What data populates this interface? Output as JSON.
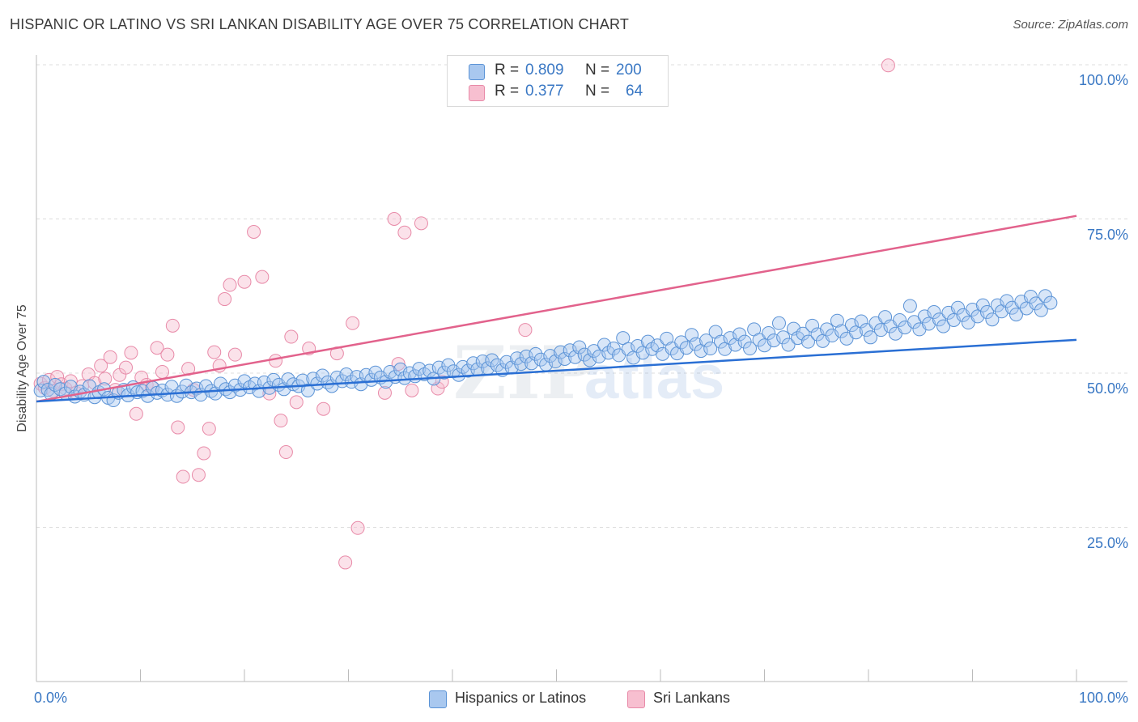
{
  "title": "HISPANIC OR LATINO VS SRI LANKAN DISABILITY AGE OVER 75 CORRELATION CHART",
  "source": "Source: ZipAtlas.com",
  "watermark": "ZIPatlas",
  "stats": {
    "row1": {
      "r_label": "R =",
      "r_value": "0.809",
      "n_label": "N =",
      "n_value": "200"
    },
    "row2": {
      "r_label": "R =",
      "r_value": "0.377",
      "n_label": "N =",
      "n_value": "64"
    }
  },
  "legend": {
    "hispanic": "Hispanics or Latinos",
    "srilankan": "Sri Lankans"
  },
  "colors": {
    "blue_fill": "#a9c8ef",
    "blue_edge": "#5b93d6",
    "blue_line": "#2a6fd4",
    "pink_fill": "#f7bfd0",
    "pink_edge": "#e88aa8",
    "pink_line": "#e2628c",
    "axis_text": "#3a78c4",
    "grid": "#dddddd"
  },
  "chart_data": {
    "type": "scatter",
    "title": "HISPANIC OR LATINO VS SRI LANKAN DISABILITY AGE OVER 75 CORRELATION CHART",
    "xlabel": "",
    "ylabel": "Disability Age Over 75",
    "xlim": [
      0,
      100
    ],
    "ylim": [
      0,
      100
    ],
    "x_tick_labels": [
      "0.0%",
      "100.0%"
    ],
    "y_tick_labels": [
      "25.0%",
      "50.0%",
      "75.0%",
      "100.0%"
    ],
    "y_ticks": [
      25,
      50,
      75,
      100
    ],
    "grid": true,
    "legend_position": "bottom",
    "series": [
      {
        "name": "Hispanics or Latinos",
        "r": 0.809,
        "n": 200,
        "trend": {
          "x": [
            0,
            100
          ],
          "y": [
            45.4,
            55.4
          ]
        },
        "points": [
          [
            0.4,
            47.2
          ],
          [
            0.7,
            48.6
          ],
          [
            1.1,
            47.3
          ],
          [
            1.4,
            46.6
          ],
          [
            1.8,
            48.1
          ],
          [
            2.3,
            47.4
          ],
          [
            2.8,
            46.7
          ],
          [
            3.3,
            47.8
          ],
          [
            3.7,
            46.2
          ],
          [
            4.2,
            47.0
          ],
          [
            4.6,
            46.5
          ],
          [
            5.1,
            47.9
          ],
          [
            5.6,
            46.1
          ],
          [
            6.0,
            46.9
          ],
          [
            6.5,
            47.4
          ],
          [
            6.9,
            46.0
          ],
          [
            7.4,
            45.6
          ],
          [
            7.9,
            46.8
          ],
          [
            8.4,
            47.3
          ],
          [
            8.8,
            46.4
          ],
          [
            9.3,
            47.7
          ],
          [
            9.7,
            46.9
          ],
          [
            10.2,
            47.1
          ],
          [
            10.7,
            46.3
          ],
          [
            11.2,
            47.6
          ],
          [
            11.6,
            46.8
          ],
          [
            12.1,
            47.2
          ],
          [
            12.6,
            46.5
          ],
          [
            13.0,
            47.8
          ],
          [
            13.5,
            46.3
          ],
          [
            14.0,
            47.0
          ],
          [
            14.4,
            48.0
          ],
          [
            14.9,
            46.9
          ],
          [
            15.4,
            47.5
          ],
          [
            15.8,
            46.5
          ],
          [
            16.3,
            47.9
          ],
          [
            16.8,
            47.1
          ],
          [
            17.2,
            46.7
          ],
          [
            17.7,
            48.3
          ],
          [
            18.2,
            47.4
          ],
          [
            18.6,
            46.9
          ],
          [
            19.1,
            48.0
          ],
          [
            19.6,
            47.3
          ],
          [
            20.0,
            48.7
          ],
          [
            20.5,
            47.7
          ],
          [
            21.0,
            48.3
          ],
          [
            21.4,
            47.1
          ],
          [
            21.9,
            48.5
          ],
          [
            22.4,
            47.6
          ],
          [
            22.8,
            48.9
          ],
          [
            23.3,
            48.1
          ],
          [
            23.8,
            47.4
          ],
          [
            24.2,
            49.0
          ],
          [
            24.7,
            48.2
          ],
          [
            25.2,
            47.9
          ],
          [
            25.6,
            48.8
          ],
          [
            26.1,
            47.2
          ],
          [
            26.6,
            49.1
          ],
          [
            27.0,
            48.3
          ],
          [
            27.5,
            49.6
          ],
          [
            28.0,
            48.5
          ],
          [
            28.4,
            47.9
          ],
          [
            28.9,
            49.3
          ],
          [
            29.4,
            48.7
          ],
          [
            29.8,
            49.8
          ],
          [
            30.3,
            48.6
          ],
          [
            30.8,
            49.4
          ],
          [
            31.2,
            48.2
          ],
          [
            31.7,
            49.7
          ],
          [
            32.2,
            48.9
          ],
          [
            32.6,
            50.1
          ],
          [
            33.1,
            49.3
          ],
          [
            33.6,
            48.6
          ],
          [
            34.0,
            50.2
          ],
          [
            34.5,
            49.4
          ],
          [
            35.0,
            50.6
          ],
          [
            35.4,
            49.2
          ],
          [
            35.9,
            50.0
          ],
          [
            36.4,
            49.5
          ],
          [
            36.8,
            50.7
          ],
          [
            37.3,
            49.8
          ],
          [
            37.8,
            50.4
          ],
          [
            38.2,
            49.1
          ],
          [
            38.7,
            50.9
          ],
          [
            39.2,
            50.1
          ],
          [
            39.6,
            51.3
          ],
          [
            40.1,
            50.3
          ],
          [
            40.6,
            49.7
          ],
          [
            41.0,
            51.0
          ],
          [
            41.5,
            50.4
          ],
          [
            42.0,
            51.6
          ],
          [
            42.4,
            50.6
          ],
          [
            42.9,
            51.9
          ],
          [
            43.4,
            50.8
          ],
          [
            43.8,
            52.1
          ],
          [
            44.3,
            51.3
          ],
          [
            44.8,
            50.5
          ],
          [
            45.2,
            51.8
          ],
          [
            45.7,
            50.9
          ],
          [
            46.2,
            52.4
          ],
          [
            46.6,
            51.5
          ],
          [
            47.1,
            52.7
          ],
          [
            47.6,
            51.6
          ],
          [
            48.0,
            53.1
          ],
          [
            48.5,
            52.2
          ],
          [
            49.0,
            51.4
          ],
          [
            49.4,
            52.8
          ],
          [
            49.9,
            51.9
          ],
          [
            50.4,
            53.4
          ],
          [
            50.8,
            52.3
          ],
          [
            51.3,
            53.7
          ],
          [
            51.8,
            52.6
          ],
          [
            52.2,
            54.2
          ],
          [
            52.7,
            53.0
          ],
          [
            53.2,
            52.1
          ],
          [
            53.6,
            53.6
          ],
          [
            54.1,
            52.7
          ],
          [
            54.6,
            54.6
          ],
          [
            55.0,
            53.3
          ],
          [
            55.5,
            54.0
          ],
          [
            56.0,
            52.9
          ],
          [
            56.4,
            55.7
          ],
          [
            56.9,
            53.9
          ],
          [
            57.4,
            52.5
          ],
          [
            57.8,
            54.4
          ],
          [
            58.3,
            53.3
          ],
          [
            58.8,
            55.1
          ],
          [
            59.2,
            53.9
          ],
          [
            59.7,
            54.5
          ],
          [
            60.2,
            53.1
          ],
          [
            60.6,
            55.6
          ],
          [
            61.1,
            54.0
          ],
          [
            61.6,
            53.2
          ],
          [
            62.0,
            55.0
          ],
          [
            62.5,
            54.1
          ],
          [
            63.0,
            56.2
          ],
          [
            63.4,
            54.7
          ],
          [
            63.9,
            53.6
          ],
          [
            64.4,
            55.3
          ],
          [
            64.8,
            54.0
          ],
          [
            65.3,
            56.7
          ],
          [
            65.8,
            55.1
          ],
          [
            66.2,
            53.9
          ],
          [
            66.7,
            55.7
          ],
          [
            67.2,
            54.6
          ],
          [
            67.6,
            56.3
          ],
          [
            68.1,
            55.1
          ],
          [
            68.6,
            54.0
          ],
          [
            69.0,
            57.1
          ],
          [
            69.5,
            55.4
          ],
          [
            70.0,
            54.5
          ],
          [
            70.4,
            56.5
          ],
          [
            70.9,
            55.3
          ],
          [
            71.4,
            58.1
          ],
          [
            71.8,
            55.8
          ],
          [
            72.3,
            54.6
          ],
          [
            72.8,
            57.2
          ],
          [
            73.2,
            55.7
          ],
          [
            73.7,
            56.4
          ],
          [
            74.2,
            55.1
          ],
          [
            74.6,
            57.7
          ],
          [
            75.1,
            56.3
          ],
          [
            75.6,
            55.2
          ],
          [
            76.0,
            57.1
          ],
          [
            76.5,
            56.1
          ],
          [
            77.0,
            58.5
          ],
          [
            77.4,
            56.8
          ],
          [
            77.9,
            55.6
          ],
          [
            78.4,
            57.8
          ],
          [
            78.8,
            56.6
          ],
          [
            79.3,
            58.4
          ],
          [
            79.8,
            57.0
          ],
          [
            80.2,
            55.8
          ],
          [
            80.7,
            58.1
          ],
          [
            81.2,
            57.0
          ],
          [
            81.6,
            59.1
          ],
          [
            82.1,
            57.6
          ],
          [
            82.6,
            56.4
          ],
          [
            83.0,
            58.6
          ],
          [
            83.5,
            57.4
          ],
          [
            84.0,
            60.9
          ],
          [
            84.4,
            58.3
          ],
          [
            84.9,
            57.1
          ],
          [
            85.4,
            59.2
          ],
          [
            85.8,
            58.0
          ],
          [
            86.3,
            59.9
          ],
          [
            86.8,
            58.7
          ],
          [
            87.2,
            57.6
          ],
          [
            87.7,
            59.8
          ],
          [
            88.2,
            58.6
          ],
          [
            88.6,
            60.6
          ],
          [
            89.1,
            59.4
          ],
          [
            89.6,
            58.2
          ],
          [
            90.0,
            60.3
          ],
          [
            90.5,
            59.2
          ],
          [
            91.0,
            61.0
          ],
          [
            91.4,
            59.9
          ],
          [
            91.9,
            58.7
          ],
          [
            92.4,
            61.0
          ],
          [
            92.8,
            60.0
          ],
          [
            93.3,
            61.7
          ],
          [
            93.8,
            60.6
          ],
          [
            94.2,
            59.5
          ],
          [
            94.7,
            61.6
          ],
          [
            95.2,
            60.5
          ],
          [
            95.6,
            62.4
          ],
          [
            96.1,
            61.3
          ],
          [
            96.6,
            60.2
          ],
          [
            97.0,
            62.5
          ],
          [
            97.5,
            61.4
          ]
        ]
      },
      {
        "name": "Sri Lankans",
        "r": 0.377,
        "n": 64,
        "trend": {
          "x": [
            0,
            100
          ],
          "y": [
            45.4,
            75.5
          ]
        },
        "points": [
          [
            0.4,
            48.3
          ],
          [
            0.8,
            47.6
          ],
          [
            1.2,
            48.9
          ],
          [
            1.6,
            47.1
          ],
          [
            2.0,
            49.4
          ],
          [
            2.4,
            48.2
          ],
          [
            2.8,
            47.5
          ],
          [
            3.3,
            48.7
          ],
          [
            3.8,
            46.8
          ],
          [
            4.4,
            47.9
          ],
          [
            5.0,
            49.8
          ],
          [
            5.6,
            48.4
          ],
          [
            6.2,
            51.2
          ],
          [
            6.6,
            49.1
          ],
          [
            7.1,
            52.6
          ],
          [
            7.6,
            47.3
          ],
          [
            8.0,
            49.7
          ],
          [
            8.6,
            50.9
          ],
          [
            9.1,
            53.3
          ],
          [
            9.6,
            43.4
          ],
          [
            10.1,
            49.3
          ],
          [
            10.6,
            48.1
          ],
          [
            11.1,
            47.7
          ],
          [
            11.6,
            54.1
          ],
          [
            12.1,
            50.2
          ],
          [
            12.6,
            53.0
          ],
          [
            13.1,
            57.7
          ],
          [
            13.6,
            41.2
          ],
          [
            14.1,
            33.2
          ],
          [
            14.6,
            50.7
          ],
          [
            15.1,
            47.3
          ],
          [
            15.6,
            33.5
          ],
          [
            16.1,
            37.0
          ],
          [
            16.6,
            41.0
          ],
          [
            17.1,
            53.4
          ],
          [
            17.6,
            51.2
          ],
          [
            18.1,
            62.0
          ],
          [
            18.6,
            64.3
          ],
          [
            19.1,
            53.0
          ],
          [
            20.0,
            64.8
          ],
          [
            20.9,
            72.9
          ],
          [
            21.7,
            65.6
          ],
          [
            22.4,
            46.7
          ],
          [
            23.0,
            52.0
          ],
          [
            23.5,
            42.3
          ],
          [
            24.0,
            37.2
          ],
          [
            24.5,
            55.9
          ],
          [
            25.0,
            45.3
          ],
          [
            26.2,
            54.0
          ],
          [
            27.6,
            44.2
          ],
          [
            28.9,
            53.2
          ],
          [
            29.7,
            19.3
          ],
          [
            30.4,
            58.1
          ],
          [
            30.9,
            24.9
          ],
          [
            33.5,
            46.8
          ],
          [
            34.4,
            75.0
          ],
          [
            34.8,
            51.5
          ],
          [
            35.4,
            72.8
          ],
          [
            36.1,
            47.2
          ],
          [
            37.0,
            74.3
          ],
          [
            38.6,
            47.5
          ],
          [
            39.0,
            48.6
          ],
          [
            47.0,
            57.0
          ],
          [
            81.9,
            99.9
          ]
        ]
      }
    ]
  }
}
